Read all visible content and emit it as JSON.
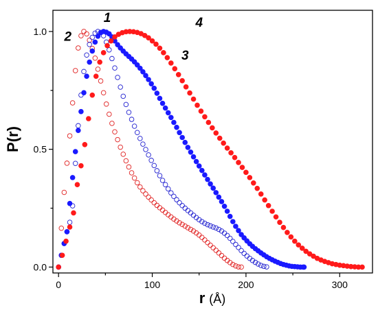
{
  "chart_data": {
    "type": "scatter",
    "xlabel": "r",
    "xunit": "(Å)",
    "ylabel": "P(r)",
    "xlim": [
      -6,
      335
    ],
    "ylim": [
      -0.025,
      1.09
    ],
    "xticks": [
      "0",
      "100",
      "200",
      "300"
    ],
    "yticks": [
      "0.0",
      "0.5",
      "1.0"
    ],
    "grid": false,
    "legend": "none",
    "annotations": [
      "1",
      "2",
      "3",
      "4"
    ],
    "series": [
      {
        "label": "2",
        "color": "#e02020",
        "marker": "open-circle",
        "x": [
          0,
          3,
          6,
          9,
          12,
          15,
          18,
          21,
          24,
          27,
          30,
          33,
          36,
          39,
          42,
          45,
          48,
          51,
          54,
          57,
          60,
          63,
          66,
          69,
          72,
          75,
          78,
          81,
          84,
          87,
          90,
          93,
          96,
          99,
          102,
          105,
          108,
          111,
          114,
          117,
          120,
          123,
          126,
          129,
          132,
          135,
          138,
          141,
          144,
          147,
          150,
          153,
          156,
          159,
          162,
          165,
          168,
          171,
          174,
          177,
          180,
          183,
          186,
          189,
          192,
          195
        ],
        "y": [
          0.0,
          0.165,
          0.317,
          0.441,
          0.557,
          0.697,
          0.834,
          0.93,
          0.982,
          1.0,
          0.99,
          0.963,
          0.928,
          0.887,
          0.84,
          0.79,
          0.74,
          0.692,
          0.649,
          0.61,
          0.574,
          0.541,
          0.509,
          0.479,
          0.451,
          0.425,
          0.4,
          0.378,
          0.358,
          0.34,
          0.324,
          0.31,
          0.297,
          0.285,
          0.273,
          0.262,
          0.252,
          0.242,
          0.232,
          0.222,
          0.213,
          0.204,
          0.196,
          0.188,
          0.181,
          0.174,
          0.167,
          0.16,
          0.153,
          0.145,
          0.136,
          0.126,
          0.115,
          0.104,
          0.093,
          0.082,
          0.071,
          0.06,
          0.049,
          0.038,
          0.028,
          0.019,
          0.011,
          0.005,
          0.001,
          0.0
        ]
      },
      {
        "label": "1",
        "color": "#2020d0",
        "marker": "open-circle",
        "x": [
          0,
          3,
          6,
          9,
          12,
          15,
          18,
          21,
          24,
          27,
          30,
          33,
          36,
          39,
          42,
          45,
          48,
          51,
          54,
          57,
          60,
          63,
          66,
          69,
          72,
          75,
          78,
          81,
          84,
          87,
          90,
          93,
          96,
          99,
          102,
          105,
          108,
          111,
          114,
          117,
          120,
          123,
          126,
          129,
          132,
          135,
          138,
          141,
          144,
          147,
          150,
          153,
          156,
          159,
          162,
          165,
          168,
          171,
          174,
          177,
          180,
          183,
          186,
          189,
          192,
          195,
          198,
          201,
          204,
          207,
          210,
          213,
          216,
          219,
          222
        ],
        "y": [
          0.0,
          0.05,
          0.1,
          0.15,
          0.19,
          0.26,
          0.44,
          0.6,
          0.73,
          0.83,
          0.9,
          0.945,
          0.975,
          0.993,
          1.0,
          0.996,
          0.982,
          0.955,
          0.922,
          0.885,
          0.845,
          0.805,
          0.764,
          0.725,
          0.69,
          0.657,
          0.627,
          0.598,
          0.571,
          0.546,
          0.522,
          0.499,
          0.476,
          0.453,
          0.431,
          0.409,
          0.388,
          0.368,
          0.35,
          0.332,
          0.315,
          0.3,
          0.286,
          0.273,
          0.261,
          0.25,
          0.24,
          0.23,
          0.22,
          0.21,
          0.201,
          0.193,
          0.186,
          0.18,
          0.175,
          0.17,
          0.166,
          0.16,
          0.153,
          0.144,
          0.134,
          0.122,
          0.109,
          0.096,
          0.083,
          0.07,
          0.058,
          0.047,
          0.037,
          0.028,
          0.02,
          0.013,
          0.007,
          0.003,
          0.001
        ]
      },
      {
        "label": "3",
        "color": "#1a1aff",
        "marker": "filled-circle",
        "x": [
          0,
          3,
          6,
          9,
          12,
          15,
          18,
          21,
          24,
          27,
          30,
          33,
          36,
          39,
          42,
          45,
          48,
          51,
          54,
          57,
          60,
          63,
          66,
          69,
          72,
          75,
          78,
          81,
          84,
          87,
          90,
          93,
          96,
          99,
          102,
          105,
          108,
          111,
          114,
          117,
          120,
          123,
          126,
          129,
          132,
          135,
          138,
          141,
          144,
          147,
          150,
          153,
          156,
          159,
          162,
          165,
          168,
          171,
          174,
          177,
          180,
          183,
          186,
          189,
          192,
          195,
          198,
          201,
          204,
          207,
          210,
          213,
          216,
          219,
          222,
          225,
          228,
          231,
          234,
          237,
          240,
          243,
          246,
          249,
          252,
          255,
          258,
          261,
          262
        ],
        "y": [
          0.0,
          0.05,
          0.1,
          0.15,
          0.27,
          0.38,
          0.49,
          0.58,
          0.66,
          0.74,
          0.81,
          0.87,
          0.917,
          0.955,
          0.98,
          0.995,
          1.0,
          0.997,
          0.99,
          0.977,
          0.96,
          0.944,
          0.93,
          0.917,
          0.905,
          0.894,
          0.883,
          0.871,
          0.858,
          0.844,
          0.829,
          0.813,
          0.796,
          0.778,
          0.759,
          0.738,
          0.716,
          0.695,
          0.675,
          0.655,
          0.635,
          0.614,
          0.593,
          0.571,
          0.55,
          0.529,
          0.508,
          0.488,
          0.468,
          0.448,
          0.429,
          0.41,
          0.391,
          0.372,
          0.353,
          0.335,
          0.316,
          0.297,
          0.278,
          0.258,
          0.237,
          0.215,
          0.193,
          0.173,
          0.155,
          0.138,
          0.124,
          0.111,
          0.099,
          0.088,
          0.078,
          0.069,
          0.06,
          0.052,
          0.044,
          0.037,
          0.031,
          0.025,
          0.02,
          0.015,
          0.011,
          0.008,
          0.005,
          0.003,
          0.002,
          0.001,
          0.0,
          0.0,
          0.0
        ]
      },
      {
        "label": "4",
        "color": "#ff1a1a",
        "marker": "filled-circle",
        "x": [
          0,
          4,
          8,
          12,
          16,
          20,
          24,
          28,
          32,
          36,
          40,
          44,
          48,
          52,
          56,
          60,
          64,
          68,
          72,
          76,
          80,
          84,
          88,
          92,
          96,
          100,
          104,
          108,
          112,
          116,
          120,
          124,
          128,
          132,
          136,
          140,
          144,
          148,
          152,
          156,
          160,
          164,
          168,
          172,
          176,
          180,
          184,
          188,
          192,
          196,
          200,
          204,
          208,
          212,
          216,
          220,
          224,
          228,
          232,
          236,
          240,
          244,
          248,
          252,
          256,
          260,
          264,
          268,
          272,
          276,
          280,
          284,
          288,
          292,
          296,
          300,
          304,
          308,
          312,
          316,
          320,
          324
        ],
        "y": [
          0.0,
          0.05,
          0.11,
          0.17,
          0.23,
          0.35,
          0.43,
          0.52,
          0.63,
          0.73,
          0.81,
          0.87,
          0.91,
          0.94,
          0.96,
          0.977,
          0.988,
          0.995,
          0.999,
          1.0,
          0.999,
          0.996,
          0.991,
          0.983,
          0.973,
          0.96,
          0.946,
          0.929,
          0.91,
          0.889,
          0.866,
          0.842,
          0.817,
          0.791,
          0.765,
          0.739,
          0.713,
          0.687,
          0.662,
          0.638,
          0.614,
          0.591,
          0.569,
          0.547,
          0.526,
          0.505,
          0.485,
          0.465,
          0.444,
          0.423,
          0.402,
          0.38,
          0.357,
          0.334,
          0.31,
          0.285,
          0.261,
          0.237,
          0.213,
          0.19,
          0.168,
          0.147,
          0.128,
          0.11,
          0.094,
          0.08,
          0.067,
          0.056,
          0.046,
          0.037,
          0.03,
          0.024,
          0.019,
          0.014,
          0.011,
          0.008,
          0.006,
          0.004,
          0.002,
          0.001,
          0.0,
          0.0
        ]
      }
    ],
    "label_positions": {}
  }
}
